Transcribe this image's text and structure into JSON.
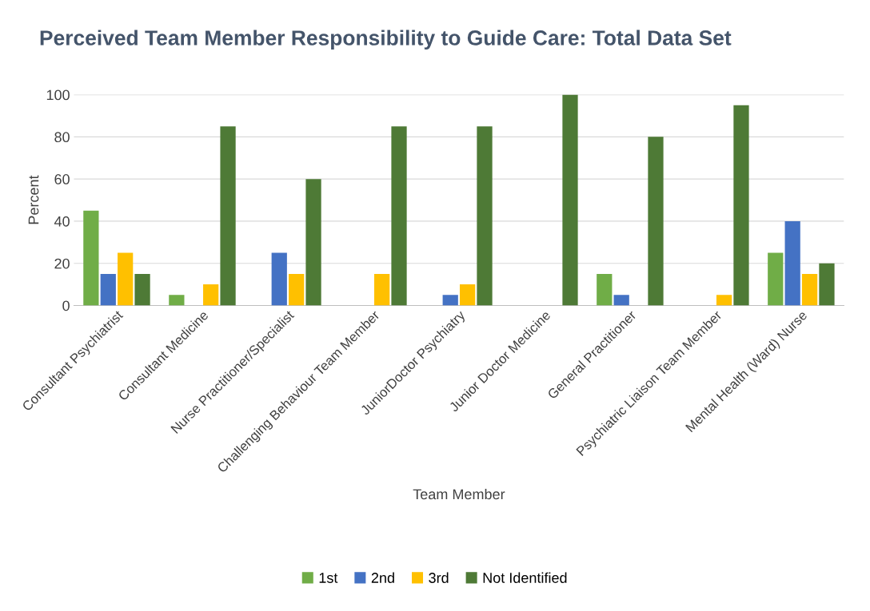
{
  "chart_data": {
    "type": "bar",
    "title": "Perceived Team Member Responsibility to Guide Care: Total Data Set",
    "xlabel": "Team Member",
    "ylabel": "Percent",
    "categories": [
      "Consultant Psychiatrist",
      "Consultant Medicine",
      "Nurse Practitioner/Specialist",
      "Challenging Behaviour Team Member",
      "JuniorDoctor Psychiatry",
      "Junior Doctor Medicine",
      "General Practitioner",
      "Psychiatric Liaison Team Member",
      "Mental Health (Ward) Nurse"
    ],
    "series": [
      {
        "name": "1st",
        "color": "#70ad47",
        "values": [
          45,
          5,
          0,
          0,
          0,
          0,
          15,
          0,
          25
        ]
      },
      {
        "name": "2nd",
        "color": "#4472c4",
        "values": [
          15,
          0,
          25,
          0,
          5,
          0,
          5,
          0,
          40
        ]
      },
      {
        "name": "3rd",
        "color": "#ffc000",
        "values": [
          25,
          10,
          15,
          15,
          10,
          0,
          0,
          5,
          15
        ]
      },
      {
        "name": "Not Identified",
        "color": "#4e7a36",
        "values": [
          15,
          85,
          60,
          85,
          85,
          100,
          80,
          95,
          20
        ]
      }
    ],
    "ylim": [
      0,
      100
    ],
    "yticks": [
      0,
      20,
      40,
      60,
      80,
      100
    ],
    "grid": "y",
    "legend": "bottom"
  }
}
